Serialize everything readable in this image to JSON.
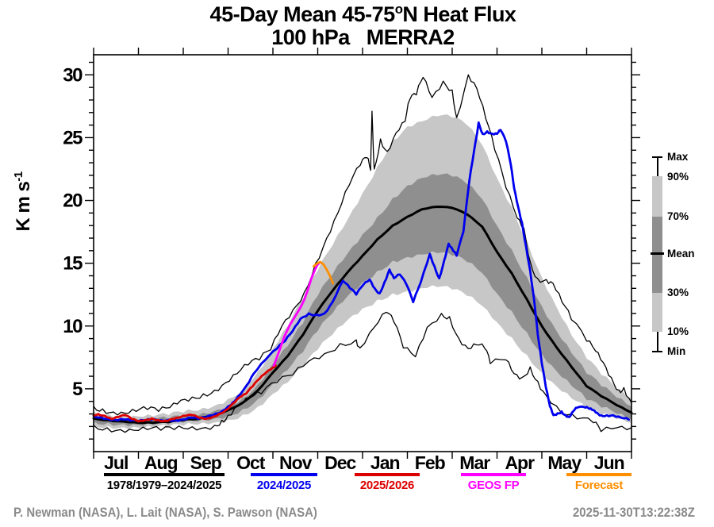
{
  "title": {
    "part1": "45-Day Mean 45-75",
    "sup": "o",
    "part2": "N Heat Flux",
    "line2": "100 hPa   MERRA2"
  },
  "y_axis_label": {
    "main": "K m s",
    "sup": "-1"
  },
  "footer": {
    "credits": "P. Newman (NASA), L. Lait (NASA), S. Pawson (NASA)",
    "timestamp": "2025-11-30T13:22:38Z"
  },
  "legend": {
    "items": [
      {
        "label": "1978/1979–2024/2025",
        "color": "#000000"
      },
      {
        "label": "2024/2025",
        "color": "#0000ee"
      },
      {
        "label": "2025/2026",
        "color": "#dd0000"
      },
      {
        "label": "GEOS FP",
        "color": "#ff00ff"
      },
      {
        "label": "Forecast",
        "color": "#ff8f00"
      }
    ]
  },
  "band_key": {
    "labels": {
      "max": "Max",
      "p90": "90%",
      "p70": "70%",
      "mean": "Mean",
      "p30": "30%",
      "p10": "10%",
      "min": "Min"
    },
    "light": "#c7c7c7",
    "dark": "#8f8f8f"
  },
  "chart_data": {
    "type": "line",
    "title": "45-Day Mean 45-75°N Heat Flux",
    "subtitle": "100 hPa   MERRA2",
    "ylabel": "K m s^-1",
    "ylim": [
      0,
      31.6
    ],
    "y_ticks": [
      5,
      10,
      15,
      20,
      25,
      30
    ],
    "x_months": [
      "Jul",
      "Aug",
      "Sep",
      "Oct",
      "Nov",
      "Dec",
      "Jan",
      "Feb",
      "Mar",
      "Apr",
      "May",
      "Jun"
    ],
    "grid": false,
    "band_grid_m": [
      0,
      0.33,
      0.67,
      1,
      1.33,
      1.67,
      2,
      2.33,
      2.67,
      3,
      3.33,
      3.67,
      4,
      4.33,
      4.67,
      5,
      5.33,
      5.67,
      6,
      6.33,
      6.67,
      7,
      7.33,
      7.67,
      8,
      8.33,
      8.67,
      9,
      9.33,
      9.67,
      10,
      10.33,
      10.67,
      11,
      11.33,
      11.67,
      12
    ],
    "bands": [
      {
        "name": "percentile-10-90",
        "fill": "#c7c7c7",
        "jitter": 0.22,
        "top": [
          3.2,
          3.0,
          2.85,
          2.8,
          2.8,
          2.9,
          3.1,
          3.25,
          3.6,
          4.2,
          5.0,
          6.4,
          8.2,
          10.0,
          12.2,
          14.4,
          16.4,
          18.5,
          20.6,
          22.7,
          24.8,
          25.9,
          26.3,
          26.7,
          26.6,
          26.0,
          24.4,
          21.8,
          19.5,
          16.8,
          13.9,
          11.5,
          9.2,
          7.4,
          6.1,
          5.0,
          4.2
        ],
        "bottom": [
          2.15,
          2.05,
          1.95,
          1.9,
          1.9,
          1.95,
          2.05,
          2.15,
          2.3,
          2.55,
          2.95,
          3.6,
          4.6,
          5.5,
          6.7,
          8.1,
          9.3,
          10.5,
          11.4,
          12.1,
          12.6,
          12.8,
          13.0,
          13.1,
          12.9,
          12.4,
          11.6,
          10.3,
          9.1,
          7.7,
          6.3,
          5.2,
          4.2,
          3.4,
          2.95,
          2.6,
          2.3
        ]
      },
      {
        "name": "percentile-30-70",
        "fill": "#8f8f8f",
        "jitter": 0.22,
        "top": [
          2.9,
          2.75,
          2.6,
          2.55,
          2.55,
          2.6,
          2.75,
          2.85,
          3.2,
          3.7,
          4.3,
          5.4,
          7.0,
          8.4,
          10.2,
          12.4,
          14.1,
          15.8,
          17.3,
          18.7,
          20.2,
          21.2,
          21.8,
          22.0,
          21.9,
          21.3,
          20.1,
          18.0,
          16.1,
          13.9,
          11.6,
          9.6,
          7.8,
          6.2,
          5.2,
          4.3,
          3.6
        ],
        "bottom": [
          2.4,
          2.3,
          2.2,
          2.1,
          2.1,
          2.15,
          2.3,
          2.4,
          2.6,
          2.9,
          3.4,
          4.2,
          5.4,
          6.5,
          7.9,
          9.6,
          11.0,
          12.4,
          13.5,
          14.4,
          15.2,
          15.5,
          15.7,
          15.8,
          15.6,
          15.1,
          14.2,
          12.6,
          11.2,
          9.5,
          7.8,
          6.4,
          5.2,
          4.1,
          3.5,
          3.0,
          2.6
        ]
      }
    ],
    "series": [
      {
        "name": "max-envelope",
        "label": "Max",
        "color": "#000000",
        "width": 1.3,
        "jitter": 0.28,
        "m": [
          0,
          0.2,
          0.45,
          0.7,
          0.95,
          1.2,
          1.45,
          1.7,
          1.95,
          2.2,
          2.45,
          2.7,
          2.95,
          3.2,
          3.45,
          3.7,
          3.95,
          4.2,
          4.45,
          4.7,
          4.95,
          5.2,
          5.45,
          5.7,
          5.95,
          6.1,
          6.18,
          6.21,
          6.26,
          6.4,
          6.55,
          6.75,
          6.95,
          7.05,
          7.2,
          7.35,
          7.55,
          7.8,
          8.0,
          8.1,
          8.36,
          8.55,
          8.75,
          8.95,
          9.2,
          9.45,
          9.6,
          9.75,
          9.9,
          10.1,
          10.25,
          10.45,
          10.66,
          11.0,
          11.2,
          11.37,
          11.55,
          11.72,
          11.83,
          12
        ],
        "v": [
          3.6,
          3.4,
          3.15,
          3.05,
          3.2,
          3.35,
          3.2,
          3.5,
          4.1,
          4.35,
          4.6,
          4.9,
          5.5,
          6.2,
          6.9,
          7.3,
          8.1,
          10.0,
          11.3,
          12.7,
          15.0,
          17.0,
          19.0,
          21.2,
          22.8,
          23.4,
          22.4,
          27.1,
          22.5,
          24.9,
          23.9,
          25.4,
          26.3,
          28.0,
          28.4,
          29.8,
          28.2,
          29.5,
          28.8,
          26.6,
          30.0,
          28.9,
          26.5,
          24.0,
          21.0,
          18.6,
          17.8,
          15.0,
          13.8,
          13.7,
          13.4,
          11.9,
          10.5,
          8.8,
          8.0,
          7.1,
          5.9,
          4.9,
          5.1,
          3.9
        ]
      },
      {
        "name": "min-envelope",
        "label": "Min",
        "color": "#000000",
        "width": 1.3,
        "jitter": 0.28,
        "m": [
          0,
          0.3,
          0.6,
          0.9,
          1.2,
          1.5,
          1.8,
          2.1,
          2.4,
          2.7,
          2.86,
          3.0,
          3.21,
          3.5,
          3.74,
          4.09,
          4.44,
          4.8,
          5.15,
          5.5,
          5.86,
          5.94,
          6.26,
          6.53,
          6.7,
          6.91,
          7.18,
          7.44,
          7.76,
          7.94,
          8.15,
          8.36,
          8.54,
          8.73,
          8.85,
          9.2,
          9.38,
          9.56,
          9.74,
          9.91,
          10.09,
          10.44,
          10.79,
          11.15,
          11.32,
          11.68,
          12
        ],
        "v": [
          2.1,
          1.9,
          1.75,
          1.7,
          1.75,
          1.7,
          1.75,
          1.8,
          1.85,
          2.1,
          2.5,
          2.9,
          3.7,
          4.3,
          4.6,
          5.5,
          6.1,
          7.2,
          7.8,
          8.6,
          8.9,
          8.25,
          9.9,
          11.1,
          10.3,
          8.25,
          7.55,
          9.9,
          11.0,
          10.75,
          9.0,
          8.2,
          8.5,
          8.2,
          7.0,
          7.3,
          6.2,
          5.9,
          6.75,
          5.6,
          4.5,
          3.05,
          2.6,
          2.3,
          1.6,
          1.9,
          1.9
        ]
      },
      {
        "name": "mean",
        "label": "1978/1979–2024/2025",
        "color": "#000000",
        "width": 3.0,
        "jitter": 0.04,
        "m": [
          0,
          0.33,
          0.67,
          1,
          1.33,
          1.67,
          2,
          2.33,
          2.67,
          3,
          3.33,
          3.67,
          4,
          4.33,
          4.67,
          5,
          5.33,
          5.67,
          6,
          6.33,
          6.67,
          7,
          7.33,
          7.67,
          8,
          8.33,
          8.67,
          9,
          9.33,
          9.67,
          10,
          10.33,
          10.67,
          11,
          11.33,
          11.67,
          12
        ],
        "v": [
          2.65,
          2.5,
          2.4,
          2.3,
          2.3,
          2.35,
          2.5,
          2.6,
          2.9,
          3.3,
          3.9,
          4.9,
          6.3,
          7.6,
          9.3,
          11.2,
          12.8,
          14.3,
          15.6,
          16.9,
          18.0,
          18.7,
          19.3,
          19.5,
          19.4,
          18.9,
          17.9,
          15.9,
          14.2,
          12.1,
          10.0,
          8.3,
          6.7,
          5.2,
          4.4,
          3.7,
          3.1
        ]
      },
      {
        "name": "year-2024-2025",
        "label": "2024/2025",
        "color": "#0000ee",
        "width": 2.8,
        "jitter": 0.09,
        "m": [
          0,
          0.17,
          0.33,
          0.5,
          0.67,
          0.83,
          1.0,
          1.17,
          1.33,
          1.5,
          1.67,
          1.83,
          2.0,
          2.17,
          2.33,
          2.5,
          2.67,
          2.83,
          3.0,
          3.1,
          3.22,
          3.42,
          3.57,
          3.83,
          4.09,
          4.27,
          4.44,
          4.62,
          4.8,
          4.97,
          5.15,
          5.33,
          5.56,
          5.72,
          5.86,
          6.02,
          6.16,
          6.27,
          6.38,
          6.49,
          6.6,
          6.7,
          6.83,
          6.98,
          7.13,
          7.3,
          7.5,
          7.6,
          7.71,
          7.82,
          7.92,
          8.02,
          8.1,
          8.25,
          8.38,
          8.49,
          8.59,
          8.68,
          8.78,
          8.9,
          9.0,
          9.08,
          9.2,
          9.31,
          9.38,
          9.47,
          9.56,
          9.65,
          9.74,
          9.83,
          9.91,
          10.0,
          10.09,
          10.18,
          10.26,
          10.35,
          10.44,
          10.53,
          10.61,
          10.7,
          10.79,
          10.97,
          11.06,
          11.15,
          11.23,
          11.32,
          11.45,
          11.59,
          11.77,
          11.94
        ],
        "v": [
          2.85,
          2.75,
          2.6,
          2.5,
          2.55,
          2.45,
          2.4,
          2.5,
          2.6,
          2.5,
          2.55,
          2.5,
          2.55,
          2.7,
          2.6,
          2.7,
          2.9,
          3.1,
          3.6,
          3.9,
          4.4,
          5.3,
          6.2,
          7.3,
          8.2,
          8.8,
          9.6,
          10.6,
          11.0,
          10.9,
          11.0,
          11.9,
          13.6,
          13.0,
          12.5,
          13.3,
          13.7,
          13.0,
          12.6,
          13.5,
          14.5,
          13.8,
          14.1,
          13.3,
          11.9,
          13.5,
          15.75,
          14.8,
          13.8,
          15.2,
          16.55,
          16.0,
          15.6,
          17.5,
          21.5,
          24.0,
          26.2,
          25.3,
          25.5,
          25.3,
          25.3,
          25.6,
          24.7,
          22.8,
          21.0,
          19.5,
          18.2,
          16.3,
          14.4,
          12.0,
          9.3,
          7.0,
          5.1,
          3.6,
          2.9,
          3.05,
          3.2,
          2.9,
          2.75,
          3.2,
          3.5,
          3.5,
          3.4,
          3.3,
          3.1,
          2.9,
          2.9,
          2.9,
          2.7,
          2.55
        ]
      },
      {
        "name": "year-2025-2026",
        "label": "2025/2026",
        "color": "#dd0000",
        "width": 2.8,
        "jitter": 0.06,
        "m": [
          0,
          0.1,
          0.25,
          0.4,
          0.55,
          0.7,
          0.85,
          1.0,
          1.15,
          1.3,
          1.45,
          1.6,
          1.75,
          1.9,
          2.05,
          2.2,
          2.35,
          2.5,
          2.65,
          2.8,
          2.95,
          3.1,
          3.25,
          3.4,
          3.55,
          3.7,
          3.85,
          4.0,
          4.06
        ],
        "v": [
          2.9,
          3.0,
          2.85,
          2.6,
          2.75,
          2.9,
          2.6,
          2.4,
          2.5,
          2.65,
          2.5,
          2.45,
          2.6,
          2.7,
          2.85,
          2.9,
          2.7,
          2.6,
          2.75,
          3.0,
          3.3,
          3.8,
          4.3,
          4.6,
          5.2,
          5.8,
          6.3,
          6.7,
          6.85
        ]
      },
      {
        "name": "geos-fp",
        "label": "GEOS FP",
        "color": "#ff00ff",
        "width": 2.8,
        "jitter": 0,
        "m": [
          4.02,
          4.14,
          4.26,
          4.38,
          4.5,
          4.62,
          4.7,
          4.78,
          4.86,
          4.94,
          4.99,
          5.03
        ],
        "v": [
          6.85,
          8.0,
          9.2,
          10.1,
          10.8,
          11.5,
          12.1,
          12.9,
          13.8,
          14.5,
          14.85,
          15.0
        ]
      },
      {
        "name": "forecast",
        "label": "Forecast",
        "color": "#ff8f00",
        "width": 2.8,
        "jitter": 0,
        "m": [
          4.91,
          4.99,
          5.06,
          5.13,
          5.2,
          5.27,
          5.34
        ],
        "v": [
          14.75,
          15.0,
          15.1,
          14.9,
          14.5,
          14.0,
          13.4
        ]
      }
    ]
  }
}
